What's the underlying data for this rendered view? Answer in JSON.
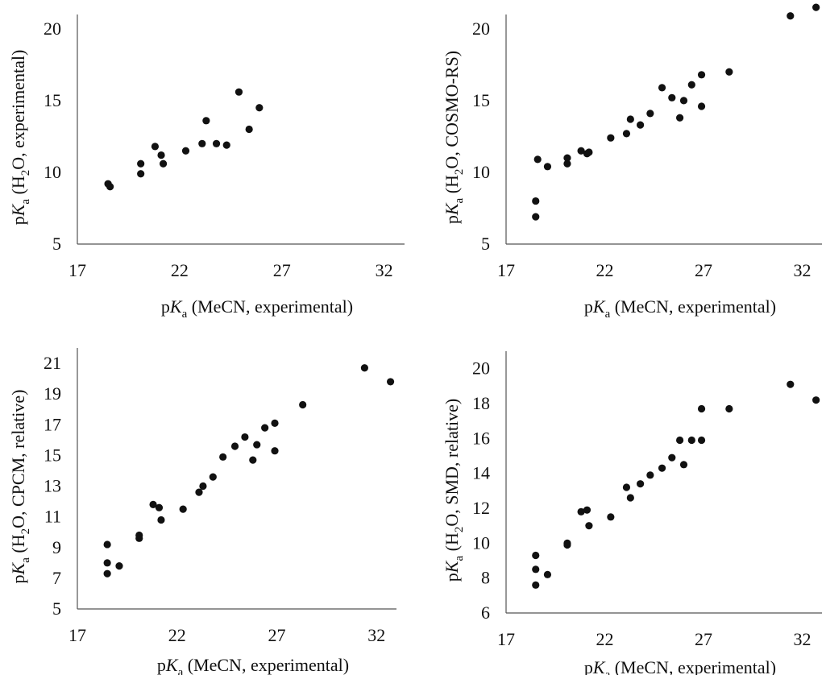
{
  "axis_text": {
    "pK_p": "p",
    "pK_K": "K",
    "pK_a": "a",
    "x_rest": " (MeCN, experimental)",
    "y_open": " (H",
    "y_sub2": "2"
  },
  "chart_data": [
    {
      "type": "scatter",
      "xlabel": "pKa (MeCN, experimental)",
      "ylabel": "pKa (H2O, experimental)",
      "ylabel_rest": "O, experimental)",
      "xlim": [
        17,
        33
      ],
      "ylim": [
        5,
        21
      ],
      "xticks": [
        17,
        22,
        27,
        32
      ],
      "yticks": [
        5,
        10,
        15,
        20
      ],
      "points": [
        {
          "x": 18.5,
          "y": 9.2
        },
        {
          "x": 18.6,
          "y": 9.0
        },
        {
          "x": 20.1,
          "y": 10.6
        },
        {
          "x": 20.1,
          "y": 9.9
        },
        {
          "x": 20.8,
          "y": 11.8
        },
        {
          "x": 21.1,
          "y": 11.2
        },
        {
          "x": 21.2,
          "y": 10.6
        },
        {
          "x": 22.3,
          "y": 11.5
        },
        {
          "x": 23.1,
          "y": 12.0
        },
        {
          "x": 23.3,
          "y": 13.6
        },
        {
          "x": 23.8,
          "y": 12.0
        },
        {
          "x": 24.3,
          "y": 11.9
        },
        {
          "x": 24.9,
          "y": 15.6
        },
        {
          "x": 25.4,
          "y": 13.0
        },
        {
          "x": 25.9,
          "y": 14.5
        }
      ]
    },
    {
      "type": "scatter",
      "xlabel": "pKa (MeCN, experimental)",
      "ylabel": "pKa (H2O, COSMO-RS)",
      "ylabel_rest": "O, COSMO-RS)",
      "xlim": [
        17,
        33
      ],
      "ylim": [
        5,
        21
      ],
      "xticks": [
        17,
        22,
        27,
        32
      ],
      "yticks": [
        5,
        10,
        15,
        20
      ],
      "points": [
        {
          "x": 18.5,
          "y": 6.9
        },
        {
          "x": 18.5,
          "y": 8.0
        },
        {
          "x": 18.6,
          "y": 10.9
        },
        {
          "x": 19.1,
          "y": 10.4
        },
        {
          "x": 20.1,
          "y": 10.6
        },
        {
          "x": 20.1,
          "y": 11.0
        },
        {
          "x": 20.8,
          "y": 11.5
        },
        {
          "x": 21.1,
          "y": 11.3
        },
        {
          "x": 21.2,
          "y": 11.4
        },
        {
          "x": 22.3,
          "y": 12.4
        },
        {
          "x": 23.1,
          "y": 12.7
        },
        {
          "x": 23.3,
          "y": 13.7
        },
        {
          "x": 23.8,
          "y": 13.3
        },
        {
          "x": 24.3,
          "y": 14.1
        },
        {
          "x": 24.9,
          "y": 15.9
        },
        {
          "x": 25.4,
          "y": 15.2
        },
        {
          "x": 25.8,
          "y": 13.8
        },
        {
          "x": 26.0,
          "y": 15.0
        },
        {
          "x": 26.4,
          "y": 16.1
        },
        {
          "x": 26.9,
          "y": 14.6
        },
        {
          "x": 26.9,
          "y": 16.8
        },
        {
          "x": 28.3,
          "y": 17.0
        },
        {
          "x": 31.4,
          "y": 20.9
        },
        {
          "x": 32.7,
          "y": 21.5
        }
      ]
    },
    {
      "type": "scatter",
      "xlabel": "pKa (MeCN, experimental)",
      "ylabel": "pKa (H2O, CPCM, relative)",
      "ylabel_rest": "O, CPCM, relative)",
      "xlim": [
        17,
        33
      ],
      "ylim": [
        5,
        22
      ],
      "xticks": [
        17,
        22,
        27,
        32
      ],
      "yticks": [
        5,
        7,
        9,
        11,
        13,
        15,
        17,
        19,
        21
      ],
      "points": [
        {
          "x": 18.5,
          "y": 7.3
        },
        {
          "x": 18.5,
          "y": 8.0
        },
        {
          "x": 18.5,
          "y": 9.2
        },
        {
          "x": 19.1,
          "y": 7.8
        },
        {
          "x": 20.1,
          "y": 9.6
        },
        {
          "x": 20.1,
          "y": 9.8
        },
        {
          "x": 20.8,
          "y": 11.8
        },
        {
          "x": 21.1,
          "y": 11.6
        },
        {
          "x": 21.2,
          "y": 10.8
        },
        {
          "x": 22.3,
          "y": 11.5
        },
        {
          "x": 23.1,
          "y": 12.6
        },
        {
          "x": 23.3,
          "y": 13.0
        },
        {
          "x": 23.8,
          "y": 13.6
        },
        {
          "x": 24.3,
          "y": 14.9
        },
        {
          "x": 24.9,
          "y": 15.6
        },
        {
          "x": 25.4,
          "y": 16.2
        },
        {
          "x": 25.8,
          "y": 14.7
        },
        {
          "x": 26.0,
          "y": 15.7
        },
        {
          "x": 26.4,
          "y": 16.8
        },
        {
          "x": 26.9,
          "y": 15.3
        },
        {
          "x": 26.9,
          "y": 17.1
        },
        {
          "x": 28.3,
          "y": 18.3
        },
        {
          "x": 31.4,
          "y": 20.7
        },
        {
          "x": 32.7,
          "y": 19.8
        }
      ]
    },
    {
      "type": "scatter",
      "xlabel": "pKa (MeCN, experimental)",
      "ylabel": "pKa (H2O, SMD, relative)",
      "ylabel_rest": "O, SMD, relative)",
      "xlim": [
        17,
        33
      ],
      "ylim": [
        6,
        21
      ],
      "xticks": [
        17,
        22,
        27,
        32
      ],
      "yticks": [
        6,
        8,
        10,
        12,
        14,
        16,
        18,
        20
      ],
      "points": [
        {
          "x": 18.5,
          "y": 7.6
        },
        {
          "x": 18.5,
          "y": 8.5
        },
        {
          "x": 18.5,
          "y": 9.3
        },
        {
          "x": 19.1,
          "y": 8.2
        },
        {
          "x": 20.1,
          "y": 9.9
        },
        {
          "x": 20.1,
          "y": 10.0
        },
        {
          "x": 20.8,
          "y": 11.8
        },
        {
          "x": 21.1,
          "y": 11.9
        },
        {
          "x": 21.2,
          "y": 11.0
        },
        {
          "x": 22.3,
          "y": 11.5
        },
        {
          "x": 23.1,
          "y": 13.2
        },
        {
          "x": 23.3,
          "y": 12.6
        },
        {
          "x": 23.8,
          "y": 13.4
        },
        {
          "x": 24.3,
          "y": 13.9
        },
        {
          "x": 24.9,
          "y": 14.3
        },
        {
          "x": 25.4,
          "y": 14.9
        },
        {
          "x": 25.8,
          "y": 15.9
        },
        {
          "x": 26.0,
          "y": 14.5
        },
        {
          "x": 26.4,
          "y": 15.9
        },
        {
          "x": 26.9,
          "y": 15.9
        },
        {
          "x": 26.9,
          "y": 17.7
        },
        {
          "x": 28.3,
          "y": 17.7
        },
        {
          "x": 31.4,
          "y": 19.1
        },
        {
          "x": 32.7,
          "y": 18.2
        }
      ]
    }
  ]
}
